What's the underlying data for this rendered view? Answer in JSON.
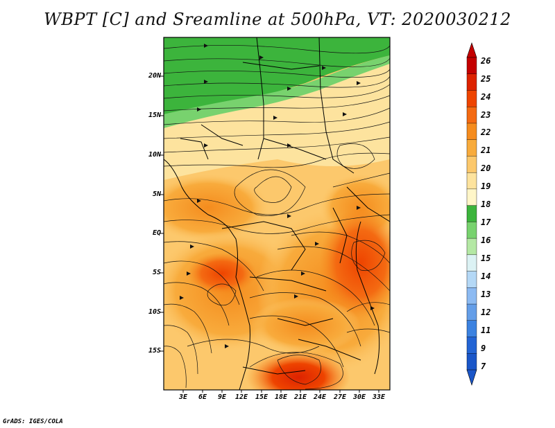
{
  "title": "WBPT [C] and Sreamline at 500hPa, VT: 2020030212",
  "map": {
    "lat_labels": [
      "20N",
      "15N",
      "10N",
      "5N",
      "EQ",
      "5S",
      "10S",
      "15S"
    ],
    "lon_labels": [
      "3E",
      "6E",
      "9E",
      "12E",
      "15E",
      "18E",
      "21E",
      "24E",
      "27E",
      "30E",
      "33E"
    ]
  },
  "colorbar": {
    "labels": [
      "26",
      "25",
      "24",
      "23",
      "22",
      "21",
      "20",
      "19",
      "18",
      "17",
      "16",
      "15",
      "14",
      "13",
      "12",
      "11",
      "9",
      "7"
    ],
    "colors": [
      "#c40000",
      "#dd2200",
      "#ee4400",
      "#f46a12",
      "#f58c1e",
      "#f8ab3c",
      "#fcc86c",
      "#fde39e",
      "#fff6c8",
      "#3cb43c",
      "#78d26e",
      "#b4e8a4",
      "#dcf2f4",
      "#b4d8f6",
      "#8cbaf2",
      "#649ee8",
      "#3c82e0",
      "#2364d4",
      "#1a56c8"
    ]
  },
  "footer": "GrADS: IGES/COLA"
}
